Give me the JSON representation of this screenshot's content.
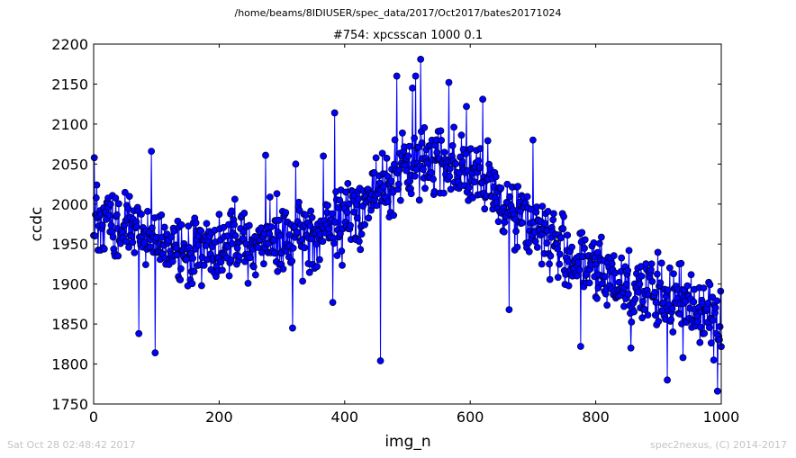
{
  "figure": {
    "suptitle": "/home/beams/8IDIUSER/spec_data/2017/Oct2017/bates20171024",
    "footer_left": "Sat Oct 28 02:48:42 2017",
    "footer_right": "spec2nexus, (C) 2014-2017"
  },
  "colors": {
    "series": "#0000ff",
    "marker_edge": "#000000",
    "footer": "#c4c4c4"
  },
  "chart_data": {
    "type": "line",
    "title": "#754: xpcsscan 1000 0.1",
    "xlabel": "img_n",
    "ylabel": "ccdc",
    "xlim": [
      0,
      1000
    ],
    "ylim": [
      1750,
      2200
    ],
    "xticks": [
      0,
      200,
      400,
      600,
      800,
      1000
    ],
    "yticks": [
      1750,
      1800,
      1850,
      1900,
      1950,
      2000,
      2050,
      2100,
      2150,
      2200
    ],
    "grid": false,
    "marker": "circle",
    "notable_points": [
      {
        "x": 1,
        "y": 2058
      },
      {
        "x": 72,
        "y": 1838
      },
      {
        "x": 92,
        "y": 2066
      },
      {
        "x": 98,
        "y": 1814
      },
      {
        "x": 274,
        "y": 2061
      },
      {
        "x": 317,
        "y": 1845
      },
      {
        "x": 322,
        "y": 2050
      },
      {
        "x": 366,
        "y": 2060
      },
      {
        "x": 381,
        "y": 1877
      },
      {
        "x": 384,
        "y": 2114
      },
      {
        "x": 457,
        "y": 1804
      },
      {
        "x": 483,
        "y": 2160
      },
      {
        "x": 508,
        "y": 2145
      },
      {
        "x": 513,
        "y": 2160
      },
      {
        "x": 521,
        "y": 2181
      },
      {
        "x": 566,
        "y": 2152
      },
      {
        "x": 594,
        "y": 2122
      },
      {
        "x": 620,
        "y": 2131
      },
      {
        "x": 662,
        "y": 1868
      },
      {
        "x": 700,
        "y": 2080
      },
      {
        "x": 776,
        "y": 1822
      },
      {
        "x": 856,
        "y": 1820
      },
      {
        "x": 914,
        "y": 1780
      },
      {
        "x": 939,
        "y": 1808
      },
      {
        "x": 988,
        "y": 1805
      },
      {
        "x": 994,
        "y": 1766
      }
    ],
    "trend": [
      {
        "x": 0,
        "y": 1985
      },
      {
        "x": 50,
        "y": 1968
      },
      {
        "x": 100,
        "y": 1952
      },
      {
        "x": 150,
        "y": 1945
      },
      {
        "x": 200,
        "y": 1948
      },
      {
        "x": 250,
        "y": 1950
      },
      {
        "x": 300,
        "y": 1953
      },
      {
        "x": 350,
        "y": 1958
      },
      {
        "x": 400,
        "y": 1980
      },
      {
        "x": 450,
        "y": 2015
      },
      {
        "x": 500,
        "y": 2045
      },
      {
        "x": 550,
        "y": 2060
      },
      {
        "x": 600,
        "y": 2040
      },
      {
        "x": 650,
        "y": 2005
      },
      {
        "x": 700,
        "y": 1975
      },
      {
        "x": 750,
        "y": 1940
      },
      {
        "x": 800,
        "y": 1915
      },
      {
        "x": 850,
        "y": 1900
      },
      {
        "x": 900,
        "y": 1885
      },
      {
        "x": 950,
        "y": 1875
      },
      {
        "x": 1000,
        "y": 1862
      }
    ],
    "noise_amplitude": 38,
    "n_points": 1001
  }
}
